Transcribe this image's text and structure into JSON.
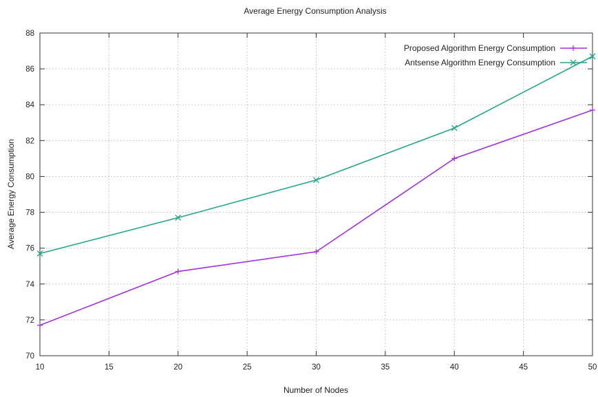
{
  "chart_data": {
    "type": "line",
    "title": "Average Energy Consumption Analysis",
    "xlabel": "Number of Nodes",
    "ylabel": "Average Energy Consumption",
    "xlim": [
      10,
      50
    ],
    "ylim": [
      70,
      88
    ],
    "xticks": [
      10,
      15,
      20,
      25,
      30,
      35,
      40,
      45,
      50
    ],
    "yticks": [
      70,
      72,
      74,
      76,
      78,
      80,
      82,
      84,
      86,
      88
    ],
    "grid": true,
    "legend_position": "top-right",
    "series": [
      {
        "name": "Proposed Algorithm Energy Consumption",
        "color": "#a22fe0",
        "marker": "plus",
        "x": [
          10,
          20,
          30,
          40,
          50
        ],
        "y": [
          71.7,
          74.7,
          75.8,
          81.0,
          83.7
        ]
      },
      {
        "name": "Antsense Algorithm Energy Consumption",
        "color": "#23a68a",
        "marker": "cross",
        "x": [
          10,
          20,
          30,
          40,
          50
        ],
        "y": [
          75.7,
          77.7,
          79.8,
          82.7,
          86.7
        ]
      }
    ]
  }
}
